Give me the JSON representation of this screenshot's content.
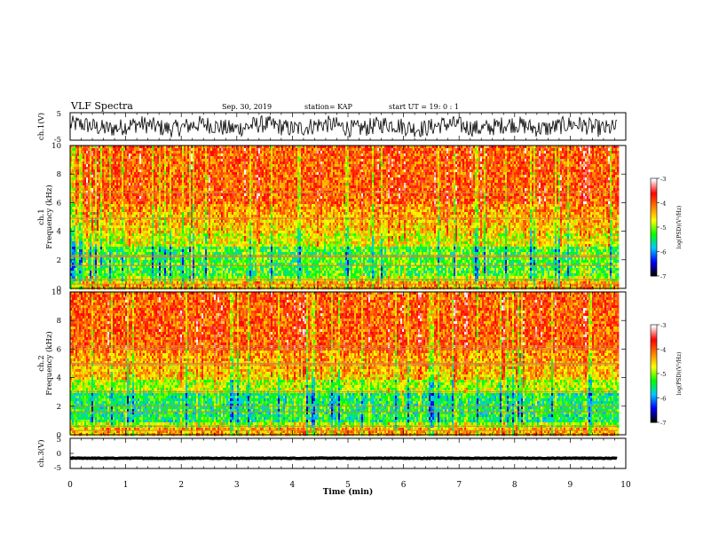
{
  "header": {
    "title": "VLF Spectra",
    "date": "Sep. 30, 2019",
    "station": "station= KAP",
    "start": "start  UT =   19: 0  : 1"
  },
  "chart_data": [
    {
      "type": "line",
      "panel": "ch1-waveform",
      "ylabel": "ch.1(V)",
      "ylim": [
        -5,
        5
      ],
      "yticks": [
        "5",
        "-5"
      ],
      "xlim": [
        0,
        10
      ],
      "series": [
        {
          "color": "#000000",
          "level": 0,
          "noise_amplitude": 3.2
        }
      ]
    },
    {
      "type": "heatmap",
      "panel": "ch1-spectrogram",
      "ylabel": "ch.1\nFrequency (kHz)",
      "ylim": [
        0,
        10
      ],
      "yticks": [
        "0",
        "2",
        "4",
        "6",
        "8",
        "10"
      ],
      "xlim": [
        0,
        9.85
      ],
      "colorbar": {
        "label": "log(PSD)(V²/Hz)",
        "range": [
          -7,
          -3
        ],
        "ticks": [
          "-3",
          "-4",
          "-5",
          "-6",
          "-7"
        ],
        "colors": [
          "#000000",
          "#0000ff",
          "#00c8ff",
          "#00ff00",
          "#ffff00",
          "#ff8000",
          "#ff0000",
          "#ffffff"
        ]
      },
      "lines_khz": [
        0.3,
        0.6,
        1.6,
        2.2,
        2.3,
        4.9,
        6.7
      ]
    },
    {
      "type": "heatmap",
      "panel": "ch2-spectrogram",
      "ylabel": "ch.2\nFrequency (kHz)",
      "ylim": [
        0,
        10
      ],
      "yticks": [
        "0",
        "2",
        "4",
        "6",
        "8",
        "10"
      ],
      "xlim": [
        0,
        9.85
      ],
      "colorbar": {
        "label": "log(PSD)(V²/Hz)",
        "range": [
          -7,
          -3
        ],
        "ticks": [
          "-3",
          "-4",
          "-5",
          "-6",
          "-7"
        ],
        "colors": [
          "#000000",
          "#0000ff",
          "#00c8ff",
          "#00ff00",
          "#ffff00",
          "#ff8000",
          "#ff0000",
          "#ffffff"
        ]
      },
      "lines_khz": [
        0.3,
        0.6,
        1.6,
        2.0,
        3.0,
        4.9,
        5.0,
        6.0,
        6.2
      ]
    },
    {
      "type": "line",
      "panel": "ch3-waveform",
      "ylabel": "ch.3(V)",
      "ylim": [
        -5,
        5
      ],
      "yticks": [
        "5",
        "0",
        "-5"
      ],
      "xlim": [
        0,
        10
      ],
      "series": [
        {
          "color": "#000000",
          "level": -1.6,
          "noise_amplitude": 0.1
        }
      ]
    }
  ],
  "x_axis": {
    "label": "Time (min)",
    "ticks": [
      "0",
      "1",
      "2",
      "3",
      "4",
      "5",
      "6",
      "7",
      "8",
      "9",
      "10"
    ],
    "range": [
      0,
      10
    ]
  }
}
